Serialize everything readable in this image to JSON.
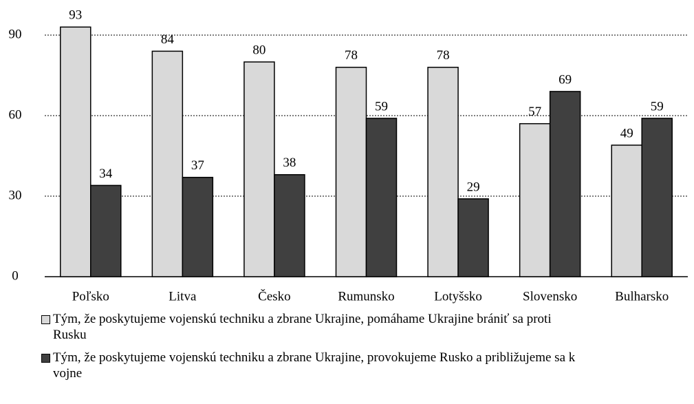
{
  "chart_data": {
    "type": "bar",
    "categories": [
      "Poľsko",
      "Litva",
      "Česko",
      "Rumunsko",
      "Lotyšsko",
      "Slovensko",
      "Bulharsko"
    ],
    "series": [
      {
        "name": "Tým, že poskytujeme vojenskú techniku a zbrane Ukrajine, pomáhame Ukrajine brániť sa proti Rusku",
        "color": "#d9d9d9",
        "values": [
          93,
          84,
          80,
          78,
          78,
          57,
          49
        ]
      },
      {
        "name": "Tým, že poskytujeme vojenskú techniku a zbrane Ukrajine, provokujeme Rusko a približujeme sa k vojne",
        "color": "#404040",
        "values": [
          34,
          37,
          38,
          59,
          29,
          69,
          59
        ]
      }
    ],
    "ylim": [
      0,
      100
    ],
    "yticks": [
      0,
      30,
      60,
      90
    ],
    "grid": true
  }
}
